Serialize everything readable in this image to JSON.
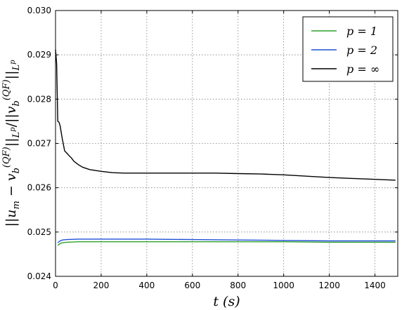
{
  "chart_data": {
    "type": "line",
    "title": "",
    "xlabel": "t (s)",
    "ylabel": "||u_m − v_b^(QF)||_{L^p} / ||v_b^(QF)||_{L^p}",
    "xlim": [
      0,
      1500
    ],
    "ylim": [
      0.024,
      0.03
    ],
    "grid": true,
    "legend_position": "top-right",
    "x_ticks": [
      "0",
      "200",
      "400",
      "600",
      "800",
      "1000",
      "1200",
      "1400"
    ],
    "y_ticks": [
      "0.024",
      "0.025",
      "0.026",
      "0.027",
      "0.028",
      "0.029",
      "0.030"
    ],
    "series": [
      {
        "name": "p = 1",
        "color": "#2ca02c",
        "x": [
          10,
          20,
          30,
          50,
          100,
          200,
          400,
          600,
          800,
          1000,
          1200,
          1490
        ],
        "y": [
          0.0247,
          0.02474,
          0.02476,
          0.02477,
          0.02478,
          0.02478,
          0.02478,
          0.02478,
          0.02478,
          0.02478,
          0.02477,
          0.02477
        ]
      },
      {
        "name": "p = 2",
        "color": "#1f4fd6",
        "x": [
          10,
          20,
          30,
          50,
          100,
          200,
          400,
          600,
          800,
          1000,
          1200,
          1490
        ],
        "y": [
          0.02476,
          0.0248,
          0.02482,
          0.02483,
          0.02484,
          0.02484,
          0.02484,
          0.02483,
          0.02482,
          0.02481,
          0.0248,
          0.0248
        ]
      },
      {
        "name": "p = ∞",
        "color": "#000000",
        "x": [
          0,
          5,
          10,
          15,
          20,
          30,
          40,
          50,
          60,
          70,
          80,
          100,
          120,
          150,
          200,
          250,
          300,
          400,
          500,
          600,
          700,
          800,
          900,
          1000,
          1100,
          1200,
          1300,
          1400,
          1490
        ],
        "y": [
          0.02912,
          0.0288,
          0.0275,
          0.02748,
          0.0274,
          0.0271,
          0.02683,
          0.02678,
          0.02672,
          0.02667,
          0.0266,
          0.02652,
          0.02646,
          0.02641,
          0.02637,
          0.02634,
          0.02633,
          0.02633,
          0.02633,
          0.02633,
          0.02633,
          0.02632,
          0.02631,
          0.02629,
          0.02626,
          0.02623,
          0.02621,
          0.02619,
          0.02617
        ]
      }
    ]
  }
}
